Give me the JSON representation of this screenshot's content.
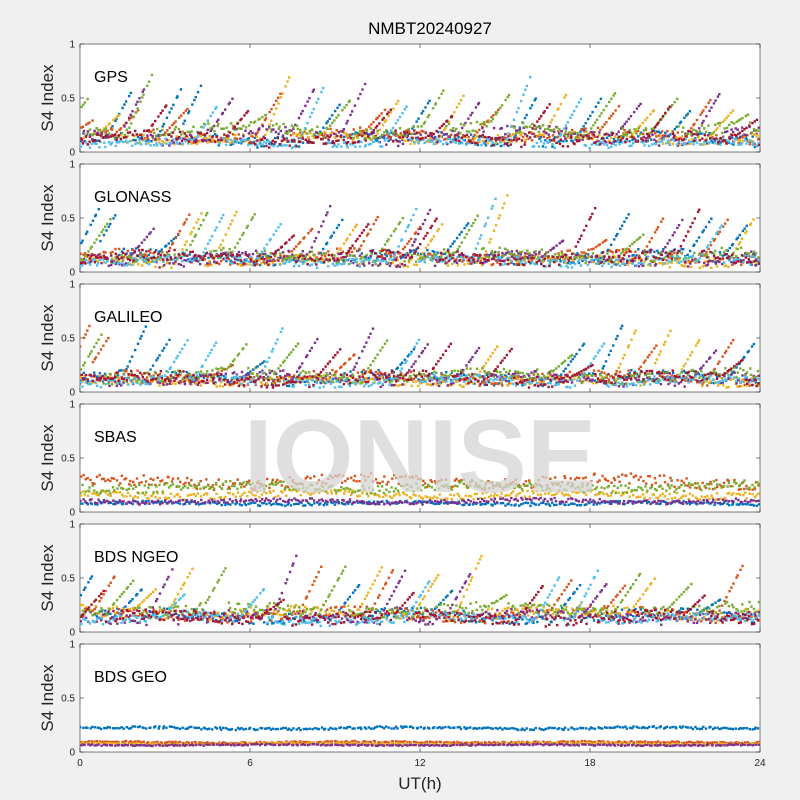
{
  "figure": {
    "title": "NMBT20240927",
    "xlabel": "UT(h)",
    "watermark": "IONISE"
  },
  "chart_data": [
    {
      "type": "scatter",
      "panel": "GPS",
      "ylabel": "S4 Index",
      "xlim": [
        0,
        24
      ],
      "ylim": [
        0,
        1
      ],
      "xticks": [
        "0",
        "6",
        "12",
        "18",
        "24"
      ],
      "yticks": [
        "0",
        "0.5",
        "1"
      ],
      "x_tick_labels_shown": false,
      "series": [
        {
          "color": "#0072BD",
          "baseline": 0.12,
          "noise": 0.05,
          "spikes": [
            [
              1.8,
              0.55
            ],
            [
              3.6,
              0.6
            ],
            [
              4.3,
              0.63
            ],
            [
              9.2,
              0.45
            ],
            [
              12.4,
              0.5
            ],
            [
              16.2,
              0.55
            ],
            [
              18.4,
              0.5
            ],
            [
              21.6,
              0.4
            ]
          ]
        },
        {
          "color": "#D95319",
          "baseline": 0.15,
          "noise": 0.05,
          "spikes": [
            [
              0.5,
              0.3
            ],
            [
              2.1,
              0.4
            ],
            [
              3.8,
              0.4
            ],
            [
              7.1,
              0.55
            ],
            [
              10.8,
              0.4
            ],
            [
              14.8,
              0.4
            ],
            [
              19.1,
              0.45
            ],
            [
              22.3,
              0.5
            ]
          ]
        },
        {
          "color": "#EDB120",
          "baseline": 0.13,
          "noise": 0.04,
          "spikes": [
            [
              1.4,
              0.35
            ],
            [
              7.4,
              0.7
            ],
            [
              11.3,
              0.5
            ],
            [
              13.6,
              0.55
            ],
            [
              17.2,
              0.55
            ],
            [
              20.3,
              0.4
            ],
            [
              23.1,
              0.4
            ]
          ]
        },
        {
          "color": "#7E2F8E",
          "baseline": 0.15,
          "noise": 0.06,
          "spikes": [
            [
              2.3,
              0.6
            ],
            [
              5.4,
              0.5
            ],
            [
              8.3,
              0.6
            ],
            [
              10.1,
              0.65
            ],
            [
              14.2,
              0.5
            ],
            [
              19.8,
              0.45
            ],
            [
              22.6,
              0.55
            ]
          ]
        },
        {
          "color": "#77AC30",
          "baseline": 0.2,
          "noise": 0.05,
          "spikes": [
            [
              0.3,
              0.5
            ],
            [
              2.6,
              0.75
            ],
            [
              6.6,
              0.35
            ],
            [
              9.6,
              0.5
            ],
            [
              12.9,
              0.6
            ],
            [
              15.2,
              0.55
            ],
            [
              18.9,
              0.55
            ],
            [
              21.1,
              0.5
            ],
            [
              23.6,
              0.35
            ]
          ]
        },
        {
          "color": "#4DBEEE",
          "baseline": 0.08,
          "noise": 0.03,
          "spikes": [
            [
              4.9,
              0.45
            ],
            [
              8.6,
              0.6
            ],
            [
              11.6,
              0.45
            ],
            [
              15.9,
              0.7
            ],
            [
              17.7,
              0.5
            ]
          ]
        },
        {
          "color": "#A2142F",
          "baseline": 0.12,
          "noise": 0.05,
          "spikes": [
            [
              3.1,
              0.45
            ],
            [
              6.0,
              0.4
            ],
            [
              11.0,
              0.4
            ],
            [
              13.2,
              0.35
            ],
            [
              16.6,
              0.45
            ],
            [
              20.9,
              0.45
            ],
            [
              23.9,
              0.3
            ]
          ]
        }
      ]
    },
    {
      "type": "scatter",
      "panel": "GLONASS",
      "ylabel": "S4 Index",
      "xlim": [
        0,
        24
      ],
      "ylim": [
        0,
        1
      ],
      "xticks": [
        "0",
        "6",
        "12",
        "18",
        "24"
      ],
      "yticks": [
        "0",
        "0.5",
        "1"
      ],
      "x_tick_labels_shown": false,
      "series": [
        {
          "color": "#0072BD",
          "baseline": 0.14,
          "noise": 0.05,
          "spikes": [
            [
              0.7,
              0.6
            ],
            [
              1.3,
              0.55
            ],
            [
              3.5,
              0.35
            ],
            [
              9.3,
              0.5
            ],
            [
              13.7,
              0.45
            ],
            [
              19.4,
              0.55
            ],
            [
              22.3,
              0.5
            ],
            [
              23.6,
              0.45
            ]
          ]
        },
        {
          "color": "#D95319",
          "baseline": 0.14,
          "noise": 0.05,
          "spikes": [
            [
              3.9,
              0.55
            ],
            [
              8.2,
              0.4
            ],
            [
              10.6,
              0.55
            ],
            [
              12.1,
              0.45
            ],
            [
              18.6,
              0.3
            ],
            [
              20.7,
              0.55
            ],
            [
              22.9,
              0.5
            ]
          ]
        },
        {
          "color": "#EDB120",
          "baseline": 0.1,
          "noise": 0.04,
          "spikes": [
            [
              4.3,
              0.55
            ],
            [
              5.6,
              0.6
            ],
            [
              9.8,
              0.45
            ],
            [
              12.8,
              0.45
            ],
            [
              15.1,
              0.72
            ],
            [
              23.8,
              0.5
            ]
          ]
        },
        {
          "color": "#7E2F8E",
          "baseline": 0.12,
          "noise": 0.05,
          "spikes": [
            [
              2.6,
              0.4
            ],
            [
              8.9,
              0.65
            ],
            [
              12.4,
              0.6
            ],
            [
              17.1,
              0.3
            ],
            [
              21.3,
              0.5
            ]
          ]
        },
        {
          "color": "#77AC30",
          "baseline": 0.15,
          "noise": 0.05,
          "spikes": [
            [
              1.1,
              0.5
            ],
            [
              4.6,
              0.6
            ],
            [
              6.2,
              0.55
            ],
            [
              11.4,
              0.5
            ],
            [
              14.1,
              0.55
            ],
            [
              19.9,
              0.35
            ]
          ]
        },
        {
          "color": "#4DBEEE",
          "baseline": 0.1,
          "noise": 0.04,
          "spikes": [
            [
              5.1,
              0.55
            ],
            [
              7.1,
              0.45
            ],
            [
              11.9,
              0.6
            ],
            [
              14.7,
              0.7
            ],
            [
              22.7,
              0.45
            ]
          ]
        },
        {
          "color": "#A2142F",
          "baseline": 0.13,
          "noise": 0.05,
          "spikes": [
            [
              7.6,
              0.35
            ],
            [
              10.2,
              0.45
            ],
            [
              12.6,
              0.5
            ],
            [
              18.2,
              0.6
            ],
            [
              21.9,
              0.6
            ]
          ]
        }
      ]
    },
    {
      "type": "scatter",
      "panel": "GALILEO",
      "ylabel": "S4 Index",
      "xlim": [
        0,
        24
      ],
      "ylim": [
        0,
        1
      ],
      "xticks": [
        "0",
        "6",
        "12",
        "18",
        "24"
      ],
      "yticks": [
        "0",
        "0.5",
        "1"
      ],
      "x_tick_labels_shown": false,
      "series": [
        {
          "color": "#0072BD",
          "baseline": 0.13,
          "noise": 0.05,
          "spikes": [
            [
              2.4,
              0.65
            ],
            [
              3.2,
              0.5
            ],
            [
              6.6,
              0.3
            ],
            [
              11.8,
              0.4
            ],
            [
              17.8,
              0.45
            ],
            [
              19.2,
              0.65
            ],
            [
              23.8,
              0.45
            ]
          ]
        },
        {
          "color": "#D95319",
          "baseline": 0.13,
          "noise": 0.05,
          "spikes": [
            [
              0.4,
              0.65
            ],
            [
              1.0,
              0.5
            ],
            [
              5.4,
              0.25
            ],
            [
              9.7,
              0.35
            ],
            [
              20.4,
              0.45
            ],
            [
              23.1,
              0.5
            ]
          ]
        },
        {
          "color": "#EDB120",
          "baseline": 0.1,
          "noise": 0.04,
          "spikes": [
            [
              14.8,
              0.45
            ],
            [
              19.7,
              0.62
            ],
            [
              20.9,
              0.6
            ],
            [
              21.9,
              0.5
            ]
          ]
        },
        {
          "color": "#7E2F8E",
          "baseline": 0.12,
          "noise": 0.05,
          "spikes": [
            [
              8.4,
              0.5
            ],
            [
              10.4,
              0.62
            ],
            [
              12.3,
              0.45
            ],
            [
              14.2,
              0.45
            ],
            [
              22.5,
              0.4
            ]
          ]
        },
        {
          "color": "#77AC30",
          "baseline": 0.15,
          "noise": 0.05,
          "spikes": [
            [
              0.8,
              0.55
            ],
            [
              5.9,
              0.45
            ],
            [
              7.7,
              0.45
            ],
            [
              10.9,
              0.5
            ],
            [
              17.4,
              0.35
            ]
          ]
        },
        {
          "color": "#4DBEEE",
          "baseline": 0.1,
          "noise": 0.04,
          "spikes": [
            [
              3.8,
              0.48
            ],
            [
              4.9,
              0.5
            ],
            [
              7.2,
              0.62
            ],
            [
              12.0,
              0.5
            ],
            [
              18.5,
              0.45
            ]
          ]
        },
        {
          "color": "#A2142F",
          "baseline": 0.12,
          "noise": 0.05,
          "spikes": [
            [
              9.2,
              0.4
            ],
            [
              13.1,
              0.45
            ],
            [
              15.3,
              0.42
            ],
            [
              18.1,
              0.25
            ],
            [
              23.4,
              0.3
            ]
          ]
        }
      ]
    },
    {
      "type": "scatter",
      "panel": "SBAS",
      "ylabel": "S4 Index",
      "xlim": [
        0,
        24
      ],
      "ylim": [
        0,
        1
      ],
      "xticks": [
        "0",
        "6",
        "12",
        "18",
        "24"
      ],
      "yticks": [
        "0",
        "0.5",
        "1"
      ],
      "x_tick_labels_shown": false,
      "series": [
        {
          "color": "#0072BD",
          "baseline": 0.08,
          "noise": 0.015,
          "spikes": []
        },
        {
          "color": "#D95319",
          "baseline": 0.28,
          "noise": 0.05,
          "spikes": []
        },
        {
          "color": "#EDB120",
          "baseline": 0.16,
          "noise": 0.03,
          "spikes": []
        },
        {
          "color": "#7E2F8E",
          "baseline": 0.1,
          "noise": 0.02,
          "spikes": []
        },
        {
          "color": "#77AC30",
          "baseline": 0.23,
          "noise": 0.04,
          "spikes": []
        }
      ]
    },
    {
      "type": "scatter",
      "panel": "BDS NGEO",
      "ylabel": "S4 Index",
      "xlim": [
        0,
        24
      ],
      "ylim": [
        0,
        1
      ],
      "xticks": [
        "0",
        "6",
        "12",
        "18",
        "24"
      ],
      "yticks": [
        "0",
        "0.5",
        "1"
      ],
      "x_tick_labels_shown": false,
      "series": [
        {
          "color": "#0072BD",
          "baseline": 0.15,
          "noise": 0.05,
          "spikes": [
            [
              0.5,
              0.55
            ],
            [
              2.2,
              0.4
            ],
            [
              9.9,
              0.45
            ],
            [
              13.2,
              0.4
            ],
            [
              17.7,
              0.45
            ],
            [
              22.6,
              0.3
            ]
          ]
        },
        {
          "color": "#D95319",
          "baseline": 0.16,
          "noise": 0.05,
          "spikes": [
            [
              1.3,
              0.55
            ],
            [
              8.6,
              0.65
            ],
            [
              11.1,
              0.6
            ],
            [
              17.4,
              0.5
            ],
            [
              19.3,
              0.45
            ],
            [
              23.4,
              0.62
            ]
          ]
        },
        {
          "color": "#EDB120",
          "baseline": 0.18,
          "noise": 0.05,
          "spikes": [
            [
              2.7,
              0.4
            ],
            [
              4.0,
              0.6
            ],
            [
              10.7,
              0.62
            ],
            [
              12.7,
              0.55
            ],
            [
              14.2,
              0.72
            ],
            [
              20.3,
              0.5
            ]
          ]
        },
        {
          "color": "#7E2F8E",
          "baseline": 0.14,
          "noise": 0.05,
          "spikes": [
            [
              3.3,
              0.6
            ],
            [
              7.7,
              0.75
            ],
            [
              11.5,
              0.58
            ],
            [
              13.8,
              0.55
            ],
            [
              18.6,
              0.45
            ]
          ]
        },
        {
          "color": "#77AC30",
          "baseline": 0.2,
          "noise": 0.05,
          "spikes": [
            [
              1.9,
              0.48
            ],
            [
              5.2,
              0.62
            ],
            [
              9.4,
              0.62
            ],
            [
              15.1,
              0.35
            ],
            [
              19.8,
              0.55
            ],
            [
              21.6,
              0.45
            ]
          ]
        },
        {
          "color": "#4DBEEE",
          "baseline": 0.12,
          "noise": 0.04,
          "spikes": [
            [
              3.7,
              0.35
            ],
            [
              6.5,
              0.4
            ],
            [
              12.4,
              0.5
            ],
            [
              17.0,
              0.55
            ],
            [
              18.3,
              0.58
            ]
          ]
        },
        {
          "color": "#A2142F",
          "baseline": 0.13,
          "noise": 0.05,
          "spikes": [
            [
              0.9,
              0.4
            ],
            [
              7.2,
              0.3
            ],
            [
              11.9,
              0.4
            ],
            [
              16.4,
              0.45
            ],
            [
              22.1,
              0.35
            ]
          ]
        }
      ]
    },
    {
      "type": "scatter",
      "panel": "BDS GEO",
      "ylabel": "S4 Index",
      "xlim": [
        0,
        24
      ],
      "ylim": [
        0,
        1
      ],
      "xticks": [
        "0",
        "6",
        "12",
        "18",
        "24"
      ],
      "yticks": [
        "0",
        "0.5",
        "1"
      ],
      "x_tick_labels_shown": true,
      "series": [
        {
          "color": "#0072BD",
          "baseline": 0.22,
          "noise": 0.012,
          "spikes": []
        },
        {
          "color": "#D95319",
          "baseline": 0.09,
          "noise": 0.008,
          "spikes": []
        },
        {
          "color": "#EDB120",
          "baseline": 0.075,
          "noise": 0.008,
          "spikes": []
        },
        {
          "color": "#7E2F8E",
          "baseline": 0.065,
          "noise": 0.006,
          "spikes": []
        }
      ]
    }
  ]
}
